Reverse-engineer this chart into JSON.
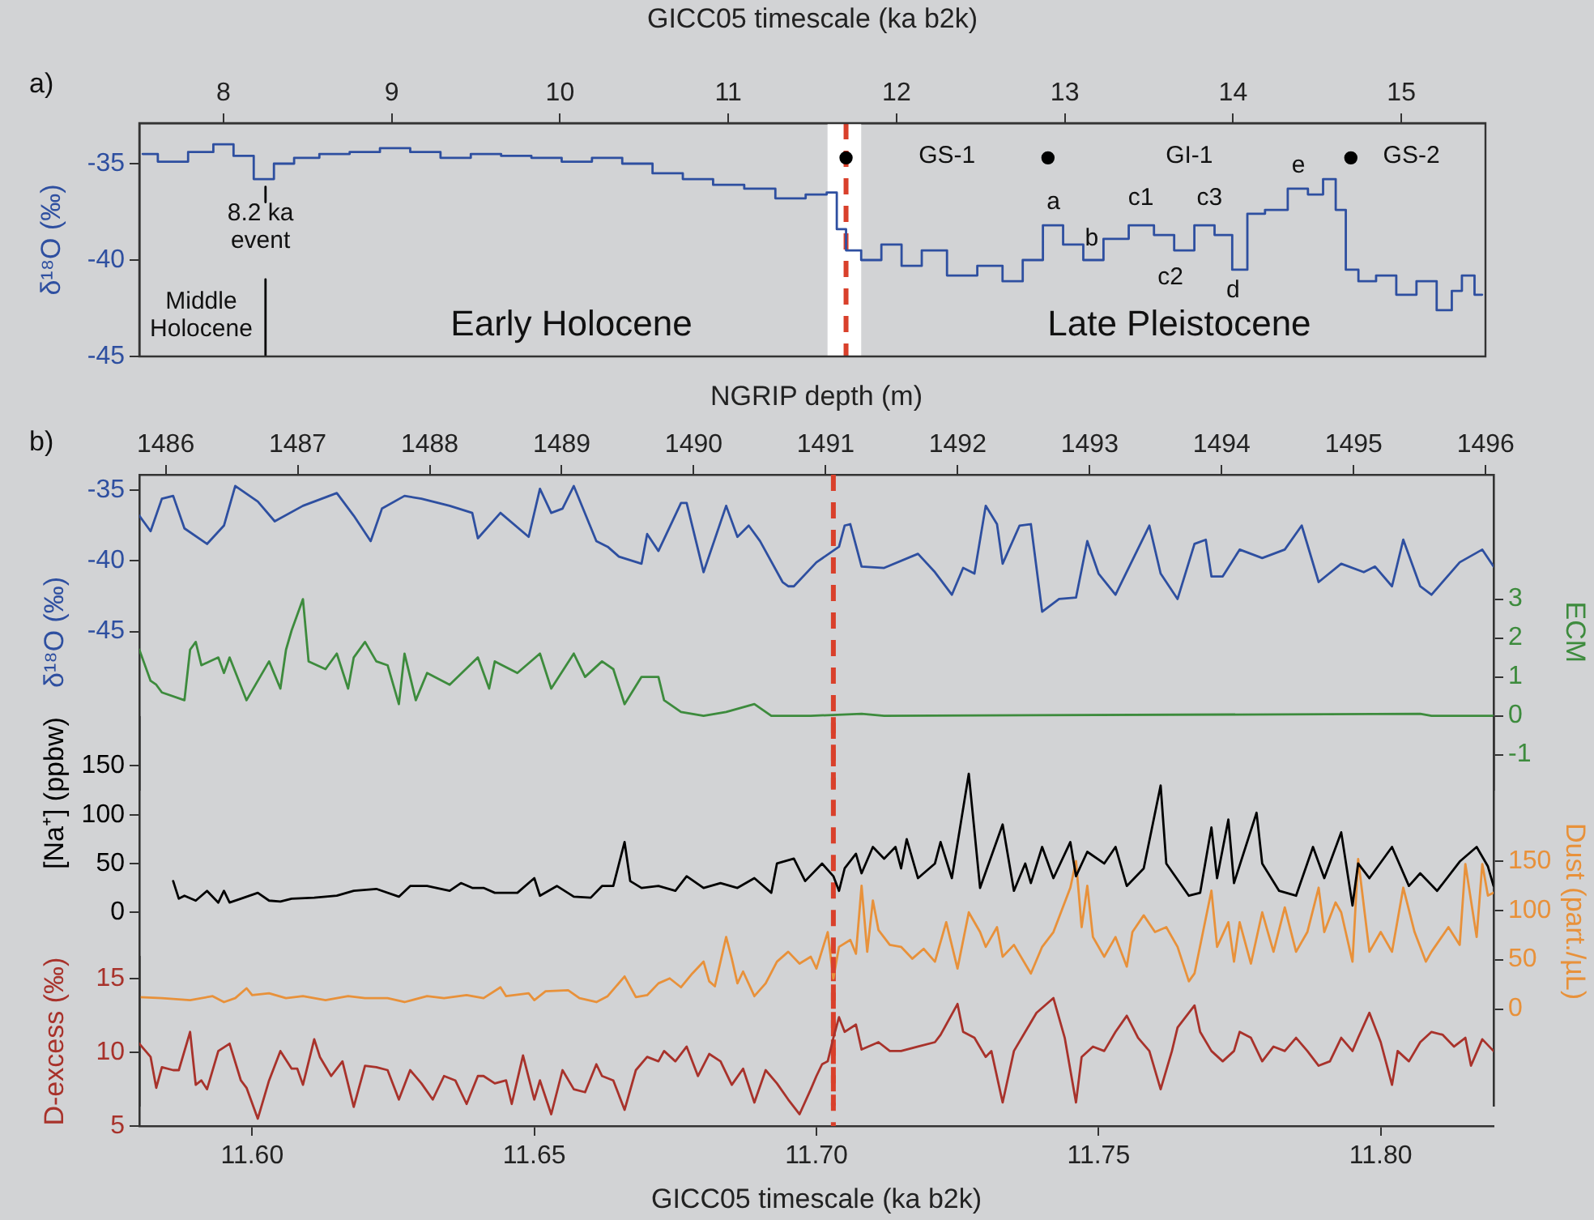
{
  "chart_data": [
    {
      "type": "step",
      "xlabel": "GICC05 timescale (ka b2k)",
      "ylabel": "δ¹⁸O (‰)",
      "xlim": [
        7.5,
        15.5
      ],
      "xticks": [
        8,
        9,
        10,
        11,
        12,
        13,
        14,
        15
      ],
      "ylim": [
        -45,
        -32.9
      ],
      "yticks": [
        -45,
        -40,
        -35
      ],
      "legend": false,
      "marker": "none",
      "series": [
        {
          "color": "#2e4fa0",
          "x": [
            7.52,
            7.7,
            7.88,
            8.0,
            8.12,
            8.24,
            8.36,
            8.48,
            8.66,
            8.84,
            9.02,
            9.2,
            9.38,
            9.56,
            9.74,
            9.92,
            10.1,
            10.28,
            10.46,
            10.64,
            10.82,
            11.0,
            11.19,
            11.37,
            11.55,
            11.62,
            11.67,
            11.73,
            11.85,
            11.97,
            12.09,
            12.21,
            12.39,
            12.57,
            12.69,
            12.81,
            12.93,
            13.05,
            13.17,
            13.29,
            13.47,
            13.59,
            13.71,
            13.83,
            13.95,
            14.04,
            14.13,
            14.25,
            14.4,
            14.49,
            14.58,
            14.64,
            14.7,
            14.79,
            14.91,
            15.03,
            15.15,
            15.27,
            15.33,
            15.39,
            15.48
          ],
          "values": [
            -34.5,
            -34.9,
            -34.4,
            -34.0,
            -34.6,
            -35.8,
            -35.0,
            -34.7,
            -34.5,
            -34.4,
            -34.2,
            -34.4,
            -34.7,
            -34.5,
            -34.6,
            -34.7,
            -34.9,
            -34.7,
            -35.0,
            -35.5,
            -35.8,
            -36.1,
            -36.3,
            -36.8,
            -36.6,
            -36.5,
            -38.4,
            -39.5,
            -40.0,
            -39.2,
            -40.3,
            -39.5,
            -40.8,
            -40.3,
            -41.1,
            -40.0,
            -38.2,
            -39.2,
            -40.0,
            -38.9,
            -38.2,
            -38.7,
            -39.5,
            -38.2,
            -38.7,
            -40.5,
            -37.6,
            -37.4,
            -36.3,
            -36.6,
            -35.8,
            -37.4,
            -40.5,
            -41.1,
            -40.8,
            -41.8,
            -41.1,
            -42.6,
            -41.6,
            -40.8,
            -41.8
          ]
        },
        {
          "type": "scatter",
          "marker": "circle",
          "color": "#000000",
          "x": [
            11.7,
            12.9,
            14.7
          ],
          "values": [
            -34.7,
            -34.7,
            -34.7
          ]
        },
        {
          "type": "line",
          "color": "#000000",
          "x": [
            8.25,
            8.25
          ],
          "values": [
            -36.2,
            -37.0
          ]
        },
        {
          "type": "line",
          "color": "#000000",
          "x": [
            8.25,
            8.25
          ],
          "values": [
            -41,
            -45
          ]
        }
      ],
      "bands": [
        {
          "axis": "x",
          "from": 11.59,
          "to": 11.79,
          "color": "#ffffff"
        }
      ],
      "ref_lines": [
        {
          "axis": "x",
          "value": 11.7,
          "color": "#d9402b",
          "line_style": "dashed"
        }
      ],
      "annotations": [
        "a)",
        "8.2 ka event",
        "Middle Holocene",
        "Early Holocene",
        "Late Pleistocene",
        "GS-1",
        "GI-1",
        "GS-2",
        "a",
        "b",
        "c1",
        "c2",
        "c3",
        "d",
        "e"
      ]
    },
    {
      "type": "line",
      "tick_labels": "y",
      "xlim": [
        11.58,
        11.82
      ],
      "x2label": "NGRIP depth (m)",
      "x2lim": [
        1485.8,
        1496.06
      ],
      "x2ticks": [
        1486,
        1487,
        1488,
        1489,
        1490,
        1491,
        1492,
        1493,
        1494,
        1495,
        1496
      ],
      "ylabel": "δ¹⁸O (‰)",
      "ylim": [
        -56.2,
        -33.9
      ],
      "yticks": [
        -45,
        -40,
        -35
      ],
      "y2label": "ECM",
      "y2lim": [
        -1.9,
        6.2
      ],
      "y2ticks": [
        -1,
        0,
        1,
        2,
        3
      ],
      "legend": false,
      "marker": "none",
      "series": [
        {
          "axis": "y",
          "color": "#2e4fa0",
          "x": [
            11.58,
            11.582,
            11.584,
            11.586,
            11.588,
            11.592,
            11.595,
            11.597,
            11.601,
            11.604,
            11.609,
            11.615,
            11.618,
            11.621,
            11.623,
            11.627,
            11.63,
            11.635,
            11.639,
            11.64,
            11.644,
            11.649,
            11.651,
            11.653,
            11.655,
            11.657,
            11.661,
            11.663,
            11.665,
            11.669,
            11.67,
            11.672,
            11.676,
            11.677,
            11.68,
            11.684,
            11.686,
            11.688,
            11.69,
            11.694,
            11.695,
            11.696,
            11.7,
            11.704,
            11.705,
            11.706,
            11.708,
            11.712,
            11.718,
            11.721,
            11.724,
            11.726,
            11.728,
            11.73,
            11.732,
            11.733,
            11.736,
            11.738,
            11.74,
            11.743,
            11.746,
            11.748,
            11.75,
            11.753,
            11.759,
            11.761,
            11.764,
            11.767,
            11.769,
            11.77,
            11.772,
            11.775,
            11.779,
            11.783,
            11.786,
            11.789,
            11.793,
            11.797,
            11.799,
            11.802,
            11.804,
            11.807,
            11.809,
            11.814,
            11.818,
            11.82
          ],
          "values": [
            -36.8,
            -37.9,
            -35.6,
            -35.4,
            -37.7,
            -38.8,
            -37.5,
            -34.7,
            -35.8,
            -37.2,
            -36.1,
            -35.2,
            -36.8,
            -38.6,
            -36.3,
            -35.4,
            -35.6,
            -36.1,
            -36.6,
            -38.4,
            -36.6,
            -38.3,
            -34.9,
            -36.6,
            -36.3,
            -34.7,
            -38.6,
            -39.0,
            -39.7,
            -40.2,
            -38.1,
            -39.3,
            -35.9,
            -35.9,
            -40.8,
            -36.1,
            -38.3,
            -37.5,
            -38.6,
            -41.5,
            -41.8,
            -41.8,
            -40.1,
            -39.0,
            -37.5,
            -37.4,
            -40.4,
            -40.5,
            -39.5,
            -40.8,
            -42.4,
            -40.5,
            -40.9,
            -36.1,
            -37.4,
            -40.2,
            -37.5,
            -37.4,
            -43.6,
            -42.7,
            -42.6,
            -38.6,
            -40.9,
            -42.4,
            -37.5,
            -40.9,
            -42.7,
            -38.8,
            -38.5,
            -41.1,
            -41.1,
            -39.2,
            -39.8,
            -39.2,
            -37.5,
            -41.5,
            -40.2,
            -40.8,
            -40.4,
            -41.8,
            -38.5,
            -41.8,
            -42.4,
            -40.1,
            -39.2,
            -40.4
          ]
        },
        {
          "axis": "y2",
          "color": "#3d8b3d",
          "x": [
            11.58,
            11.582,
            11.583,
            11.584,
            11.588,
            11.589,
            11.59,
            11.591,
            11.594,
            11.595,
            11.596,
            11.599,
            11.601,
            11.603,
            11.605,
            11.606,
            11.607,
            11.609,
            11.61,
            11.613,
            11.615,
            11.617,
            11.618,
            11.62,
            11.622,
            11.624,
            11.626,
            11.627,
            11.629,
            11.631,
            11.635,
            11.64,
            11.642,
            11.643,
            11.647,
            11.651,
            11.653,
            11.657,
            11.659,
            11.662,
            11.664,
            11.666,
            11.669,
            11.672,
            11.673,
            11.676,
            11.68,
            11.684,
            11.689,
            11.692,
            11.699,
            11.708,
            11.712,
            11.807,
            11.809,
            11.82
          ],
          "values": [
            1.7,
            0.9,
            0.8,
            0.6,
            0.4,
            1.7,
            1.9,
            1.3,
            1.5,
            1.1,
            1.5,
            0.4,
            0.9,
            1.4,
            0.7,
            1.7,
            2.2,
            3.0,
            1.4,
            1.2,
            1.6,
            0.7,
            1.5,
            1.9,
            1.4,
            1.3,
            0.3,
            1.6,
            0.4,
            1.1,
            0.8,
            1.5,
            0.7,
            1.4,
            1.1,
            1.6,
            0.7,
            1.6,
            1.0,
            1.4,
            1.2,
            0.3,
            1.0,
            1.0,
            0.4,
            0.1,
            0.0,
            0.1,
            0.3,
            0.0,
            0.0,
            0.05,
            0.0,
            0.05,
            0.0,
            0.0
          ]
        }
      ],
      "ref_lines": [
        {
          "axis": "x",
          "value": 11.703,
          "color": "#d9402b",
          "line_style": "dashed"
        }
      ],
      "annotations": [
        "b)"
      ]
    },
    {
      "type": "line",
      "tick_labels": "y",
      "xlim": [
        11.58,
        11.82
      ],
      "ylabel": "[Na⁺] (ppbw)",
      "ylim": [
        -198,
        200
      ],
      "yticks": [
        0,
        50,
        100,
        150
      ],
      "y2label": "Dust (part./µL)",
      "y2lim": [
        -98,
        296
      ],
      "y2ticks": [
        0,
        50,
        100,
        150
      ],
      "legend": false,
      "marker": "none",
      "series": [
        {
          "axis": "y",
          "color": "#000000",
          "x": [
            11.586,
            11.587,
            11.588,
            11.59,
            11.592,
            11.594,
            11.595,
            11.596,
            11.598,
            11.601,
            11.603,
            11.605,
            11.607,
            11.611,
            11.615,
            11.618,
            11.622,
            11.626,
            11.628,
            11.631,
            11.635,
            11.637,
            11.639,
            11.641,
            11.643,
            11.647,
            11.65,
            11.651,
            11.654,
            11.657,
            11.66,
            11.662,
            11.664,
            11.666,
            11.667,
            11.669,
            11.672,
            11.675,
            11.677,
            11.68,
            11.683,
            11.686,
            11.689,
            11.692,
            11.693,
            11.696,
            11.698,
            11.701,
            11.703,
            11.704,
            11.705,
            11.707,
            11.708,
            11.71,
            11.712,
            11.714,
            11.715,
            11.716,
            11.718,
            11.721,
            11.722,
            11.724,
            11.727,
            11.729,
            11.733,
            11.735,
            11.737,
            11.738,
            11.74,
            11.742,
            11.745,
            11.746,
            11.748,
            11.751,
            11.753,
            11.755,
            11.758,
            11.761,
            11.762,
            11.766,
            11.768,
            11.77,
            11.771,
            11.773,
            11.774,
            11.778,
            11.779,
            11.782,
            11.785,
            11.788,
            11.79,
            11.793,
            11.795,
            11.796,
            11.798,
            11.802,
            11.805,
            11.807,
            11.81,
            11.814,
            11.817,
            11.819,
            11.82
          ],
          "values": [
            32,
            14,
            17,
            12,
            22,
            10,
            22,
            10,
            14,
            20,
            12,
            11,
            14,
            15,
            17,
            22,
            24,
            16,
            27,
            27,
            22,
            30,
            25,
            25,
            20,
            20,
            35,
            17,
            27,
            16,
            15,
            27,
            27,
            72,
            32,
            25,
            27,
            22,
            37,
            25,
            30,
            25,
            35,
            20,
            50,
            55,
            32,
            50,
            37,
            22,
            45,
            60,
            40,
            67,
            55,
            67,
            45,
            75,
            35,
            50,
            72,
            35,
            142,
            25,
            90,
            22,
            50,
            30,
            67,
            35,
            72,
            37,
            62,
            50,
            67,
            27,
            45,
            130,
            50,
            17,
            20,
            87,
            35,
            95,
            30,
            102,
            50,
            22,
            17,
            67,
            35,
            82,
            7,
            50,
            35,
            67,
            27,
            40,
            22,
            52,
            67,
            47,
            27
          ]
        },
        {
          "axis": "y2",
          "color": "#e8913a",
          "x": [
            11.58,
            11.584,
            11.589,
            11.593,
            11.595,
            11.597,
            11.599,
            11.6,
            11.603,
            11.606,
            11.609,
            11.613,
            11.617,
            11.62,
            11.624,
            11.627,
            11.631,
            11.634,
            11.638,
            11.641,
            11.644,
            11.645,
            11.649,
            11.65,
            11.652,
            11.656,
            11.658,
            11.661,
            11.663,
            11.666,
            11.668,
            11.67,
            11.672,
            11.674,
            11.676,
            11.678,
            11.68,
            11.681,
            11.682,
            11.684,
            11.685,
            11.686,
            11.687,
            11.689,
            11.691,
            11.693,
            11.695,
            11.697,
            11.699,
            11.7,
            11.702,
            11.703,
            11.704,
            11.706,
            11.707,
            11.708,
            11.709,
            11.71,
            11.711,
            11.713,
            11.715,
            11.717,
            11.719,
            11.721,
            11.723,
            11.725,
            11.727,
            11.729,
            11.73,
            11.732,
            11.733,
            11.735,
            11.738,
            11.74,
            11.742,
            11.745,
            11.746,
            11.747,
            11.748,
            11.749,
            11.751,
            11.753,
            11.755,
            11.756,
            11.758,
            11.76,
            11.762,
            11.764,
            11.766,
            11.767,
            11.77,
            11.771,
            11.773,
            11.774,
            11.775,
            11.777,
            11.779,
            11.78,
            11.781,
            11.783,
            11.785,
            11.787,
            11.789,
            11.79,
            11.792,
            11.793,
            11.795,
            11.796,
            11.798,
            11.8,
            11.802,
            11.804,
            11.806,
            11.808,
            11.809,
            11.812,
            11.814,
            11.815,
            11.817,
            11.818,
            11.819,
            11.82
          ],
          "values": [
            12,
            11,
            9,
            13,
            7,
            11,
            21,
            14,
            16,
            11,
            13,
            9,
            13,
            11,
            11,
            7,
            13,
            11,
            14,
            11,
            22,
            13,
            16,
            9,
            18,
            19,
            11,
            7,
            13,
            33,
            12,
            14,
            26,
            31,
            22,
            36,
            48,
            28,
            23,
            73,
            51,
            26,
            38,
            13,
            26,
            48,
            58,
            46,
            53,
            41,
            78,
            31,
            63,
            70,
            56,
            125,
            58,
            110,
            80,
            65,
            63,
            51,
            61,
            48,
            88,
            41,
            98,
            78,
            63,
            83,
            53,
            65,
            36,
            63,
            78,
            123,
            150,
            83,
            125,
            73,
            53,
            73,
            43,
            78,
            95,
            78,
            83,
            63,
            28,
            36,
            120,
            63,
            88,
            48,
            88,
            46,
            98,
            78,
            58,
            103,
            58,
            78,
            123,
            78,
            108,
            98,
            48,
            152,
            58,
            78,
            58,
            123,
            78,
            48,
            58,
            83,
            65,
            147,
            73,
            147,
            115,
            118
          ]
        }
      ],
      "ref_lines": [
        {
          "axis": "x",
          "value": 11.703,
          "color": "#d9402b",
          "line_style": "dashed"
        }
      ]
    },
    {
      "type": "line",
      "xlabel": "GICC05 timescale (ka b2k)",
      "xlim": [
        11.58,
        11.82
      ],
      "xticks": [
        {
          "value": 11.6,
          "label": "11.60"
        },
        {
          "value": 11.65,
          "label": "11.65"
        },
        {
          "value": 11.7,
          "label": "11.70"
        },
        {
          "value": 11.75,
          "label": "11.75"
        },
        {
          "value": 11.8,
          "label": "11.80"
        }
      ],
      "ylabel": "D-excess (‰)",
      "ylim": [
        5,
        16.5
      ],
      "yticks": [
        5,
        10,
        15
      ],
      "legend": false,
      "marker": "none",
      "series": [
        {
          "axis": "y",
          "color": "#a8322b",
          "x": [
            11.58,
            11.582,
            11.583,
            11.584,
            11.586,
            11.587,
            11.589,
            11.59,
            11.591,
            11.592,
            11.594,
            11.596,
            11.598,
            11.599,
            11.601,
            11.603,
            11.605,
            11.607,
            11.608,
            11.609,
            11.611,
            11.612,
            11.614,
            11.616,
            11.618,
            11.62,
            11.622,
            11.624,
            11.626,
            11.628,
            11.63,
            11.632,
            11.634,
            11.636,
            11.638,
            11.64,
            11.641,
            11.643,
            11.645,
            11.646,
            11.648,
            11.65,
            11.651,
            11.653,
            11.655,
            11.657,
            11.659,
            11.661,
            11.662,
            11.664,
            11.666,
            11.668,
            11.67,
            11.672,
            11.673,
            11.675,
            11.677,
            11.679,
            11.681,
            11.683,
            11.685,
            11.687,
            11.689,
            11.691,
            11.693,
            11.695,
            11.697,
            11.699,
            11.7,
            11.701,
            11.702,
            11.703,
            11.704,
            11.705,
            11.707,
            11.708,
            11.711,
            11.713,
            11.715,
            11.718,
            11.721,
            11.722,
            11.725,
            11.726,
            11.728,
            11.73,
            11.731,
            11.733,
            11.735,
            11.737,
            11.739,
            11.742,
            11.744,
            11.746,
            11.747,
            11.749,
            11.751,
            11.753,
            11.755,
            11.757,
            11.759,
            11.761,
            11.763,
            11.764,
            11.767,
            11.768,
            11.77,
            11.772,
            11.774,
            11.775,
            11.777,
            11.779,
            11.781,
            11.783,
            11.785,
            11.787,
            11.789,
            11.791,
            11.793,
            11.795,
            11.796,
            11.798,
            11.8,
            11.802,
            11.803,
            11.805,
            11.807,
            11.809,
            11.811,
            11.813,
            11.815,
            11.816,
            11.818,
            11.82
          ],
          "values": [
            10.6,
            9.7,
            7.6,
            9.0,
            8.8,
            8.8,
            11.4,
            7.8,
            8.1,
            7.5,
            10.1,
            10.6,
            8.1,
            7.6,
            5.5,
            8.1,
            10.1,
            8.9,
            8.9,
            7.8,
            10.9,
            9.7,
            8.4,
            9.4,
            6.3,
            9.1,
            9.0,
            8.8,
            6.8,
            8.8,
            7.9,
            6.8,
            8.4,
            8.1,
            6.5,
            8.4,
            8.4,
            7.9,
            8.1,
            6.5,
            9.8,
            6.8,
            8.1,
            5.8,
            8.8,
            7.5,
            7.3,
            9.2,
            8.4,
            8.1,
            6.1,
            8.8,
            9.7,
            9.4,
            10.1,
            9.4,
            10.4,
            8.4,
            9.9,
            9.4,
            7.8,
            8.9,
            6.6,
            8.8,
            7.9,
            6.8,
            5.8,
            7.5,
            8.4,
            9.2,
            9.4,
            11.0,
            12.4,
            11.4,
            11.9,
            10.2,
            10.7,
            10.1,
            10.1,
            10.4,
            10.7,
            11.2,
            13.3,
            11.4,
            11.0,
            9.7,
            10.1,
            6.6,
            10.1,
            11.4,
            12.7,
            13.7,
            11.0,
            6.6,
            9.7,
            10.4,
            10.1,
            11.4,
            12.5,
            11.0,
            10.1,
            7.5,
            10.1,
            11.7,
            13.2,
            11.4,
            10.1,
            9.4,
            10.1,
            11.4,
            11.0,
            9.4,
            10.4,
            10.1,
            11.0,
            10.1,
            9.1,
            9.4,
            11.0,
            10.1,
            11.0,
            12.7,
            10.7,
            7.8,
            10.1,
            9.4,
            10.7,
            11.4,
            11.2,
            10.4,
            11.0,
            9.1,
            10.9,
            10.1
          ]
        }
      ],
      "ref_lines": [
        {
          "axis": "x",
          "value": 11.703,
          "color": "#d9402b",
          "line_style": "dashed"
        }
      ]
    }
  ]
}
